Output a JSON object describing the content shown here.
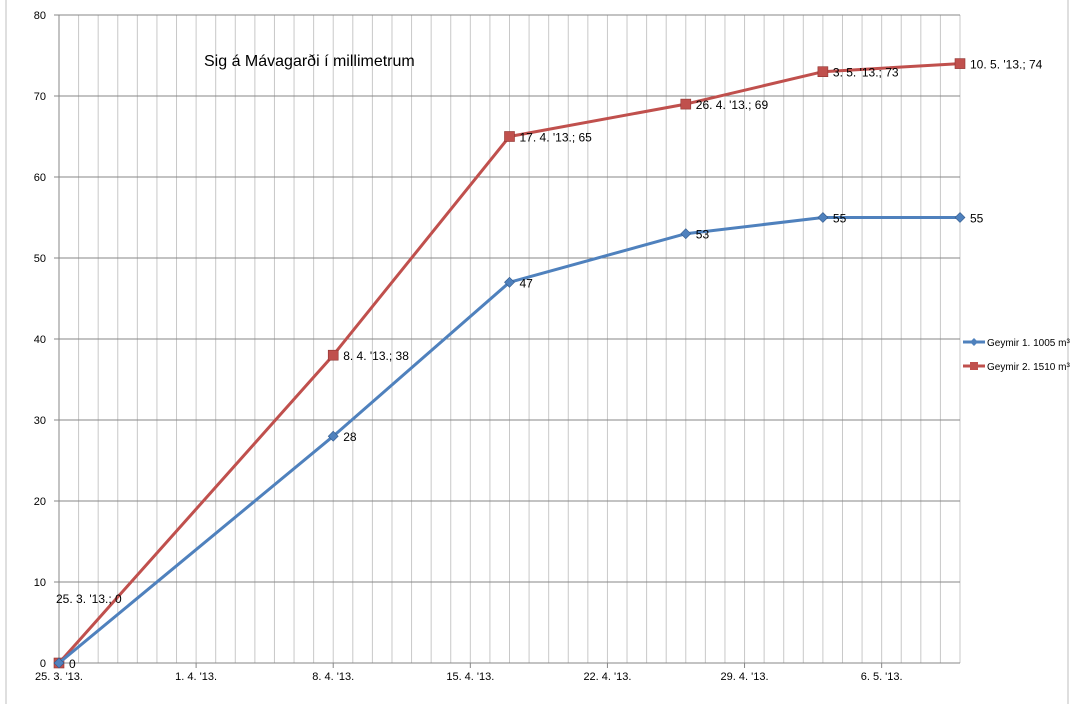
{
  "chart_data": {
    "type": "line",
    "title": "Sig á Mávagarði í millimetrum",
    "xlabel": "",
    "ylabel": "",
    "ylim": [
      0,
      80
    ],
    "y_ticks": [
      0,
      10,
      20,
      30,
      40,
      50,
      60,
      70,
      80
    ],
    "x_axis": {
      "start": "2013-03-25",
      "end": "2013-05-10",
      "tick_labels": [
        "25. 3. '13.",
        "1. 4. '13.",
        "8. 4. '13.",
        "15. 4. '13.",
        "22. 4. '13.",
        "29. 4. '13.",
        "6. 5. '13."
      ],
      "tick_dates": [
        "2013-03-25",
        "2013-04-01",
        "2013-04-08",
        "2013-04-15",
        "2013-04-22",
        "2013-04-29",
        "2013-05-06"
      ],
      "minor_grid": "daily"
    },
    "grid": true,
    "legend_position": "right",
    "series": [
      {
        "name": "Geymir 1. 1005 m³",
        "color": "#4F81BD",
        "marker": "diamond",
        "x": [
          "2013-03-25",
          "2013-04-08",
          "2013-04-17",
          "2013-04-26",
          "2013-05-03",
          "2013-05-10"
        ],
        "values": [
          0,
          28,
          47,
          53,
          55,
          55
        ],
        "labels": [
          "0",
          "28",
          "47",
          "53",
          "55",
          "55"
        ]
      },
      {
        "name": "Geymir 2. 1510 m³",
        "color": "#C0504D",
        "marker": "square",
        "x": [
          "2013-03-25",
          "2013-04-08",
          "2013-04-17",
          "2013-04-26",
          "2013-05-03",
          "2013-05-10"
        ],
        "values": [
          0,
          38,
          65,
          69,
          73,
          74
        ],
        "labels": [
          "25. 3. '13.; 0",
          "8. 4. '13.; 38",
          "17. 4. '13.; 65",
          "26. 4. '13.; 69",
          "3. 5. '13.; 73",
          "10. 5. '13.; 74"
        ]
      }
    ]
  }
}
